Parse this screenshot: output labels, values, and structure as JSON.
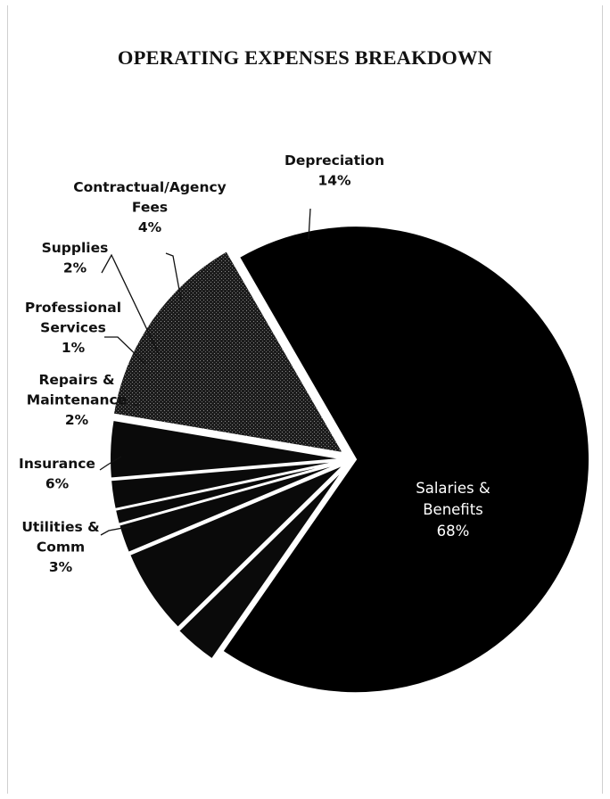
{
  "chart_data": {
    "type": "pie",
    "title": "OPERATING EXPENSES BREAKDOWN",
    "slices": [
      {
        "name": "Salaries & Benefits",
        "lines": [
          "Salaries &",
          "Benefits"
        ],
        "value": 68,
        "label": "68%",
        "color": "#000000",
        "pattern": "none"
      },
      {
        "name": "Utilities & Comm",
        "lines": [
          "Utilities &",
          "Comm"
        ],
        "value": 3,
        "label": "3%",
        "color": "#0a0a0a",
        "pattern": "none"
      },
      {
        "name": "Insurance",
        "lines": [
          "Insurance"
        ],
        "value": 6,
        "label": "6%",
        "color": "#0a0a0a",
        "pattern": "none"
      },
      {
        "name": "Repairs & Maintenance",
        "lines": [
          "Repairs &",
          "Maintenance"
        ],
        "value": 2,
        "label": "2%",
        "color": "#0a0a0a",
        "pattern": "none"
      },
      {
        "name": "Professional Services",
        "lines": [
          "Professional",
          "Services"
        ],
        "value": 1,
        "label": "1%",
        "color": "#0a0a0a",
        "pattern": "none"
      },
      {
        "name": "Supplies",
        "lines": [
          "Supplies"
        ],
        "value": 2,
        "label": "2%",
        "color": "#0a0a0a",
        "pattern": "none"
      },
      {
        "name": "Contractual/Agency Fees",
        "lines": [
          "Contractual/Agency",
          "Fees"
        ],
        "value": 4,
        "label": "4%",
        "color": "#0a0a0a",
        "pattern": "none"
      },
      {
        "name": "Depreciation",
        "lines": [
          "Depreciation"
        ],
        "value": 14,
        "label": "14%",
        "color": "#1a1a1a",
        "pattern": "stipple"
      }
    ],
    "legend": "none",
    "labels": "outside-with-leaders"
  }
}
